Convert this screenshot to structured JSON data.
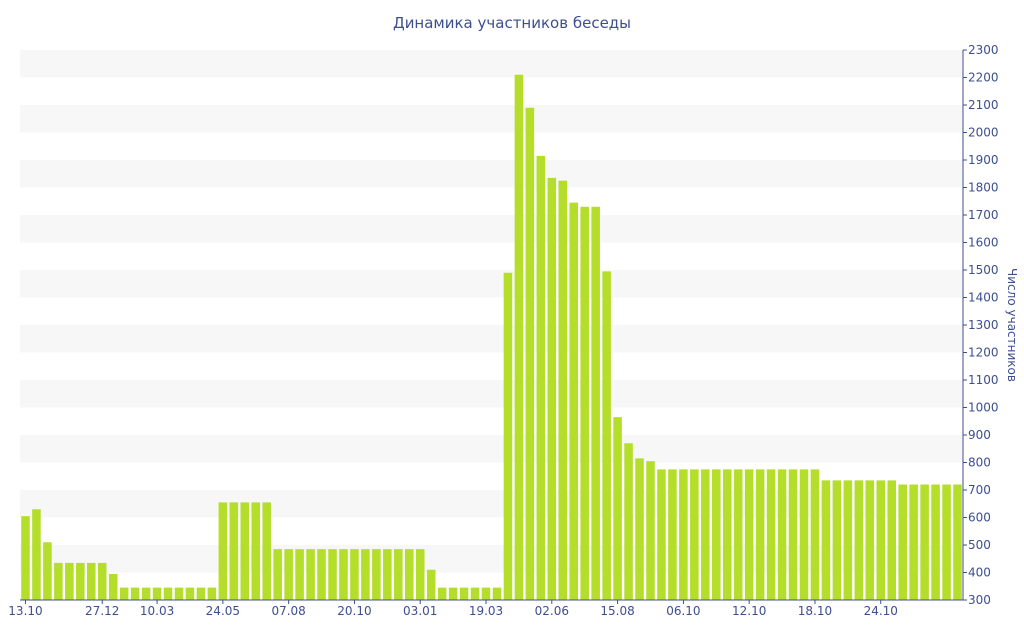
{
  "chart_data": {
    "type": "bar",
    "title": "Динамика участников беседы",
    "xlabel": "",
    "ylabel": "Число участников",
    "ylim": [
      300,
      2300
    ],
    "yticks": [
      300,
      400,
      500,
      600,
      700,
      800,
      900,
      1000,
      1100,
      1200,
      1300,
      1400,
      1500,
      1600,
      1700,
      1800,
      1900,
      2000,
      2100,
      2200,
      2300
    ],
    "xtick_labels": [
      {
        "index": 0,
        "label": "13.10"
      },
      {
        "index": 7,
        "label": "27.12"
      },
      {
        "index": 12,
        "label": "10.03"
      },
      {
        "index": 18,
        "label": "24.05"
      },
      {
        "index": 24,
        "label": "07.08"
      },
      {
        "index": 30,
        "label": "20.10"
      },
      {
        "index": 36,
        "label": "03.01"
      },
      {
        "index": 42,
        "label": "19.03"
      },
      {
        "index": 48,
        "label": "02.06"
      },
      {
        "index": 54,
        "label": "15.08"
      },
      {
        "index": 60,
        "label": "06.10"
      },
      {
        "index": 66,
        "label": "12.10"
      },
      {
        "index": 72,
        "label": "18.10"
      },
      {
        "index": 78,
        "label": "24.10"
      }
    ],
    "values": [
      605,
      630,
      510,
      435,
      435,
      435,
      435,
      435,
      395,
      345,
      345,
      345,
      345,
      345,
      345,
      345,
      345,
      345,
      655,
      655,
      655,
      655,
      655,
      485,
      485,
      485,
      485,
      485,
      485,
      485,
      485,
      485,
      485,
      485,
      485,
      485,
      485,
      410,
      345,
      345,
      345,
      345,
      345,
      345,
      1490,
      2210,
      2090,
      1915,
      1835,
      1825,
      1745,
      1730,
      1730,
      1495,
      965,
      870,
      815,
      805,
      775,
      775,
      775,
      775,
      775,
      775,
      775,
      775,
      775,
      775,
      775,
      775,
      775,
      775,
      775,
      735,
      735,
      735,
      735,
      735,
      735,
      735,
      720,
      720,
      720,
      720,
      720,
      720
    ],
    "bar_color": "#b5de2b",
    "band_color": "#f7f7f7",
    "text_color": "#3c4f8f",
    "grid": true,
    "legend": "none"
  }
}
